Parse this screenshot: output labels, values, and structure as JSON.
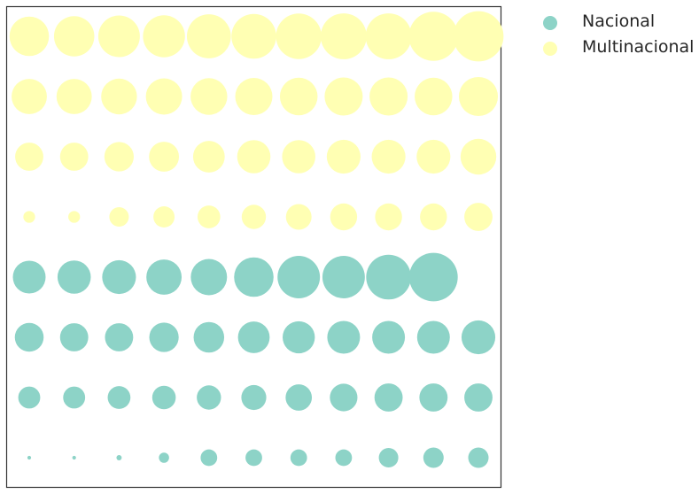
{
  "chart_data": {
    "type": "scatter",
    "title": "",
    "xlabel": "",
    "ylabel": "",
    "axes_visible": false,
    "frame": true,
    "grid": false,
    "legend_placement": "outside-top-right",
    "x": [
      1,
      2,
      3,
      4,
      5,
      6,
      7,
      8,
      9,
      10,
      11
    ],
    "rows": [
      1,
      2,
      3,
      4,
      5,
      6,
      7,
      8
    ],
    "size_scale_note": "values are relative bubble areas",
    "series": [
      {
        "name": "Nacional",
        "color": "#8dd3c7",
        "points": [
          {
            "row": 1,
            "sizes": [
              4,
              4,
              8,
              30,
              80,
              80,
              80,
              80,
              110,
              120,
              120
            ]
          },
          {
            "row": 2,
            "sizes": [
              140,
              140,
              150,
              160,
              170,
              180,
              200,
              220,
              230,
              230,
              230
            ]
          },
          {
            "row": 3,
            "sizes": [
              240,
              230,
              230,
              250,
              270,
              290,
              300,
              310,
              310,
              310,
              330
            ]
          },
          {
            "row": 4,
            "sizes": [
              310,
              320,
              330,
              360,
              380,
              450,
              520,
              520,
              580,
              680,
              null
            ]
          }
        ]
      },
      {
        "name": "Multinacional",
        "color": "#ffffb3",
        "points": [
          {
            "row": 5,
            "sizes": [
              40,
              40,
              110,
              130,
              150,
              170,
              190,
              210,
              210,
              210,
              230
            ]
          },
          {
            "row": 6,
            "sizes": [
              230,
              230,
              250,
              260,
              290,
              320,
              320,
              330,
              330,
              330,
              370
            ]
          },
          {
            "row": 7,
            "sizes": [
              360,
              360,
              370,
              380,
              390,
              400,
              410,
              420,
              420,
              410,
              440
            ]
          },
          {
            "row": 8,
            "sizes": [
              450,
              470,
              500,
              510,
              560,
              580,
              600,
              610,
              610,
              700,
              730
            ]
          }
        ]
      }
    ]
  }
}
